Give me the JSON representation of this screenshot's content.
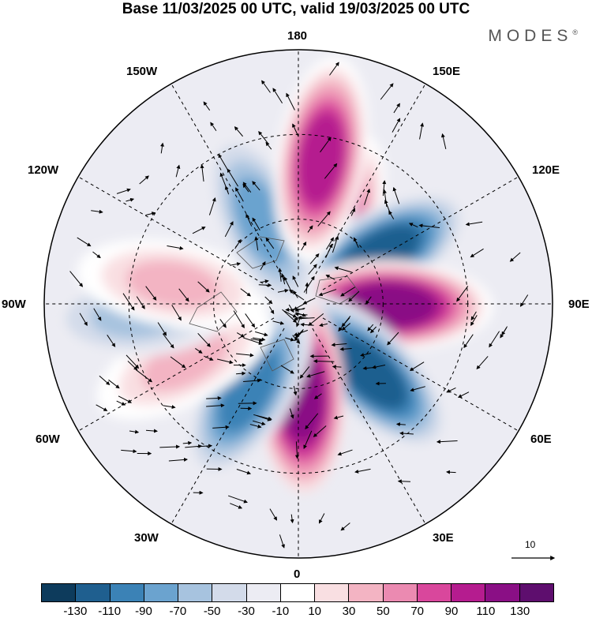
{
  "title": "Base 11/03/2025 00 UTC, valid 19/03/2025 00 UTC",
  "brand": "MODES",
  "brand_mark": "®",
  "longitude_labels": {
    "top": "180",
    "bottom": "0",
    "left": "90W",
    "right": "90E",
    "upper_left_1": "150W",
    "upper_left_2": "120W",
    "upper_right_1": "150E",
    "upper_right_2": "120E",
    "lower_left_1": "60W",
    "lower_left_2": "30W",
    "lower_right_1": "60E",
    "lower_right_2": "30E"
  },
  "reference_vector": {
    "label": "10"
  },
  "colorbar": {
    "colors": [
      "#0d3b5c",
      "#1f5f8f",
      "#3b82b6",
      "#6ba3cf",
      "#a7c3df",
      "#d3dbea",
      "#ececf3",
      "#ffffff",
      "#f9dfe2",
      "#f3b4c3",
      "#eb8ab1",
      "#d9479c",
      "#b51c8f",
      "#8a0f85",
      "#5e0e6e"
    ],
    "tick_labels": [
      "-130",
      "-110",
      "-90",
      "-70",
      "-50",
      "-30",
      "-10",
      "10",
      "30",
      "50",
      "70",
      "90",
      "110",
      "130"
    ]
  },
  "map": {
    "projection": "north-polar-stereographic",
    "anomaly_lobes": [
      {
        "lon": 158,
        "lat_center": 62,
        "value": 110
      },
      {
        "lon": 121,
        "lat_center": 57,
        "value": -110
      },
      {
        "lon": 89,
        "lat_center": 58,
        "value": 130
      },
      {
        "lon": 46,
        "lat_center": 55,
        "value": -110
      },
      {
        "lon": 2,
        "lat_center": 58,
        "value": 120
      },
      {
        "lon": -30,
        "lat_center": 55,
        "value": -90
      },
      {
        "lon": -63,
        "lat_center": 45,
        "value": 50
      },
      {
        "lon": -86,
        "lat_center": 33,
        "value": -50
      },
      {
        "lon": -99,
        "lat_center": 45,
        "value": 50
      },
      {
        "lon": -156,
        "lat_center": 58,
        "value": -70
      },
      {
        "lon": 171,
        "lat_center": 38,
        "value": 110
      }
    ]
  }
}
